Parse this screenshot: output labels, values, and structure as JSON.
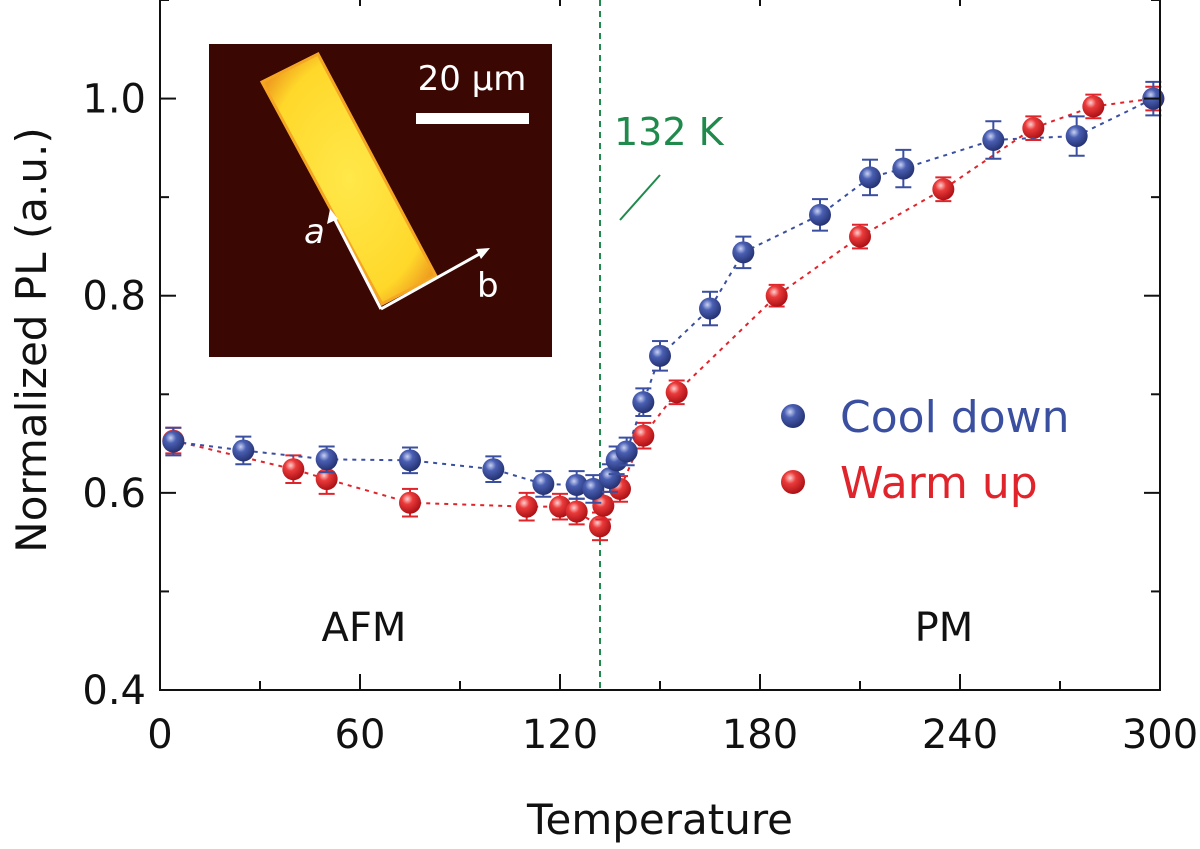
{
  "chart_data": {
    "type": "scatter",
    "xlabel": "Temperature",
    "ylabel": "Normalized PL (a.u.)",
    "xlim": [
      0,
      300
    ],
    "ylim": [
      0.4,
      1.1
    ],
    "xticks": [
      "0",
      "60",
      "120",
      "180",
      "240",
      "300"
    ],
    "xtick_values": [
      0,
      60,
      120,
      180,
      240,
      300
    ],
    "yticks": [
      "0.4",
      "0.6",
      "0.8",
      "1.0"
    ],
    "ytick_values": [
      0.4,
      0.6,
      0.8,
      1.0
    ],
    "grid": false,
    "legend_position": "right",
    "series": [
      {
        "name": "Cool down",
        "color": "#3a4fa0",
        "line_style": "dashed",
        "x": [
          4,
          25,
          50,
          75,
          100,
          115,
          125,
          130,
          135,
          137,
          140,
          145,
          150,
          165,
          175,
          198,
          213,
          223,
          250,
          275,
          298
        ],
        "y": [
          0.652,
          0.643,
          0.634,
          0.633,
          0.624,
          0.609,
          0.608,
          0.604,
          0.615,
          0.633,
          0.642,
          0.692,
          0.739,
          0.787,
          0.844,
          0.882,
          0.92,
          0.929,
          0.958,
          0.962,
          1.0
        ],
        "err": [
          0.014,
          0.014,
          0.013,
          0.013,
          0.013,
          0.013,
          0.014,
          0.014,
          0.014,
          0.014,
          0.014,
          0.014,
          0.015,
          0.017,
          0.016,
          0.016,
          0.018,
          0.019,
          0.019,
          0.02,
          0.017
        ]
      },
      {
        "name": "Warm up",
        "color": "#e0242b",
        "line_style": "dashed",
        "x": [
          4,
          40,
          50,
          75,
          110,
          120,
          125,
          132,
          133,
          138,
          145,
          155,
          185,
          210,
          235,
          262,
          280,
          298
        ],
        "y": [
          0.653,
          0.624,
          0.614,
          0.59,
          0.586,
          0.586,
          0.581,
          0.566,
          0.587,
          0.604,
          0.658,
          0.702,
          0.8,
          0.86,
          0.908,
          0.97,
          0.992,
          1.0
        ],
        "err": [
          0.013,
          0.014,
          0.015,
          0.014,
          0.014,
          0.013,
          0.013,
          0.014,
          0.014,
          0.013,
          0.013,
          0.012,
          0.011,
          0.012,
          0.012,
          0.012,
          0.012,
          0.012
        ]
      }
    ],
    "vline": {
      "x": 132,
      "label": "132 K",
      "color": "#1f8a4b"
    },
    "region_labels": [
      "AFM",
      "PM"
    ],
    "inset": {
      "scale_bar_label": "20 μm",
      "axis_a": "a",
      "axis_b": "b"
    }
  }
}
